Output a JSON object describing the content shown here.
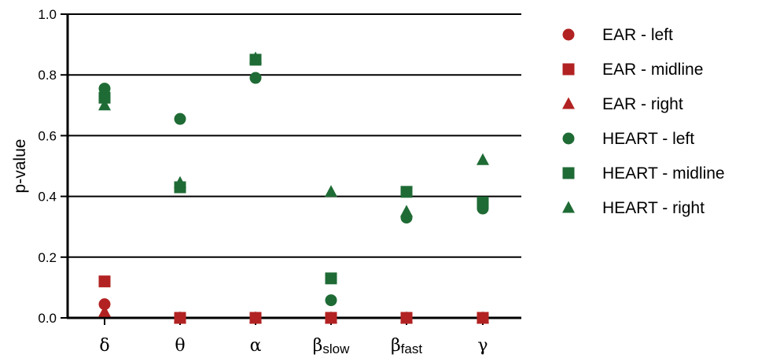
{
  "colors": {
    "ear": "#b22222",
    "heart": "#1f6b35",
    "grid": "#000000"
  },
  "chart_data": {
    "type": "scatter",
    "title": "",
    "xlabel": "",
    "ylabel": "p-value",
    "ylim": [
      0,
      1
    ],
    "yticks": [
      "0.0",
      "0.2",
      "0.4",
      "0.6",
      "0.8",
      "1.0"
    ],
    "grid": "horizontal",
    "legend_position": "right",
    "categories": [
      {
        "main": "δ",
        "sub": ""
      },
      {
        "main": "θ",
        "sub": ""
      },
      {
        "main": "α",
        "sub": ""
      },
      {
        "main": "β",
        "sub": "slow"
      },
      {
        "main": "β",
        "sub": "fast"
      },
      {
        "main": "γ",
        "sub": ""
      }
    ],
    "series": [
      {
        "name": "EAR - left",
        "marker": "circle",
        "color_key": "ear",
        "values": [
          0.045,
          0.0,
          0.0,
          0.0,
          0.0,
          0.0
        ]
      },
      {
        "name": "EAR - midline",
        "marker": "square",
        "color_key": "ear",
        "values": [
          0.12,
          0.0,
          0.0,
          0.0,
          0.0,
          0.0
        ]
      },
      {
        "name": "EAR - right",
        "marker": "triangle",
        "color_key": "ear",
        "values": [
          0.02,
          0.0,
          0.0,
          0.0,
          0.0,
          0.0
        ]
      },
      {
        "name": "HEART - left",
        "marker": "circle",
        "color_key": "heart",
        "values": [
          0.755,
          0.655,
          0.79,
          0.058,
          0.33,
          0.36
        ]
      },
      {
        "name": "HEART - midline",
        "marker": "square",
        "color_key": "heart",
        "values": [
          0.725,
          0.43,
          0.85,
          0.13,
          0.415,
          0.38
        ]
      },
      {
        "name": "HEART - right",
        "marker": "triangle",
        "color_key": "heart",
        "values": [
          0.7,
          0.445,
          0.855,
          0.415,
          0.35,
          0.52
        ]
      }
    ]
  }
}
